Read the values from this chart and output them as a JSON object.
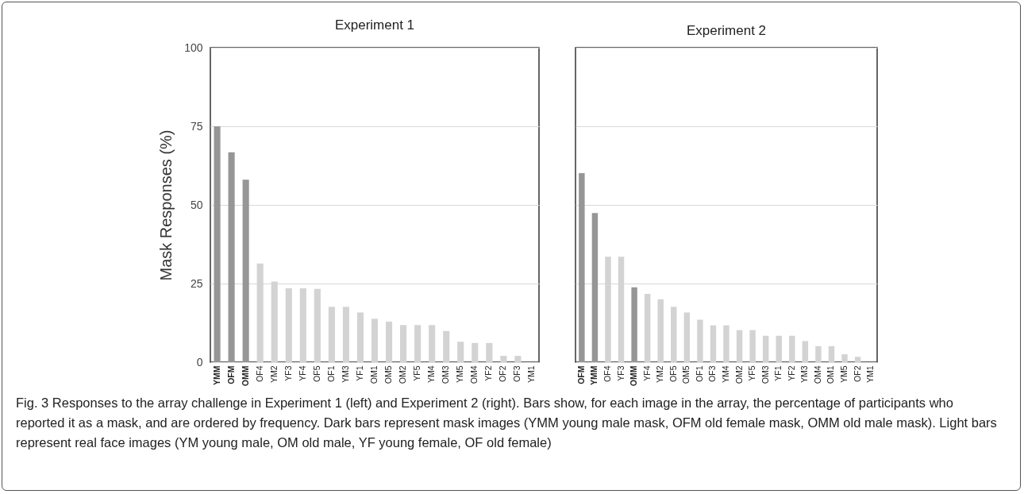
{
  "chart_data": [
    {
      "type": "bar",
      "title": "Experiment 1",
      "ylabel": "Mask Responses (%)",
      "categories": [
        "YMM",
        "OFM",
        "OMM",
        "OF4",
        "YM2",
        "YF3",
        "YF4",
        "OF5",
        "OF1",
        "YM3",
        "YF1",
        "OM1",
        "OM5",
        "OM2",
        "YF5",
        "YM4",
        "OM3",
        "YM5",
        "OM4",
        "YF2",
        "OF2",
        "OF3",
        "YM1"
      ],
      "values": [
        75,
        66.7,
        58,
        31.4,
        25.6,
        23.5,
        23.5,
        23.3,
        17.6,
        17.6,
        15.8,
        13.8,
        12.9,
        11.8,
        11.8,
        11.8,
        9.9,
        6.5,
        6.1,
        6.1,
        2,
        2,
        0
      ],
      "colors": [
        "#969696",
        "#969696",
        "#969696",
        "#d3d3d3",
        "#d3d3d3",
        "#d3d3d3",
        "#d3d3d3",
        "#d3d3d3",
        "#d3d3d3",
        "#d3d3d3",
        "#d3d3d3",
        "#d3d3d3",
        "#d3d3d3",
        "#d3d3d3",
        "#d3d3d3",
        "#d3d3d3",
        "#d3d3d3",
        "#d3d3d3",
        "#d3d3d3",
        "#d3d3d3",
        "#d3d3d3",
        "#d3d3d3",
        "#d3d3d3"
      ],
      "ylim": [
        0,
        100
      ],
      "yticks": [
        0,
        25,
        50,
        75,
        100
      ],
      "grid": "y",
      "annotations": [
        "Fig. 3 Responses to the array challenge in Experiment 1 (left) and Experiment 2 (right). Bars show, for each image in the array, the percentage of participants who reported it as a mask, and are ordered by frequency. Dark bars represent mask images (YMM young male mask, OFM old female mask, OMM old male mask). Light bars represent real face images (YM young male, OM old male, YF young female, OF old female)"
      ]
    },
    {
      "type": "bar",
      "title": "Experiment 2",
      "categories": [
        "OFM",
        "YMM",
        "OF4",
        "YF3",
        "OMM",
        "YF4",
        "YM2",
        "OF5",
        "OM5",
        "OF1",
        "OF3",
        "YM4",
        "OM2",
        "YF5",
        "OM3",
        "YF1",
        "YF2",
        "YM3",
        "OM4",
        "OM1",
        "YM5",
        "OF2",
        "YM1"
      ],
      "values": [
        60.1,
        47.4,
        33.5,
        33.5,
        23.8,
        21.7,
        20,
        17.6,
        15.8,
        13.5,
        11.7,
        11.7,
        10.2,
        10.2,
        8.4,
        8.4,
        8.4,
        6.7,
        5.1,
        5.1,
        2.5,
        1.7,
        0
      ],
      "colors": [
        "#969696",
        "#969696",
        "#d3d3d3",
        "#d3d3d3",
        "#969696",
        "#d3d3d3",
        "#d3d3d3",
        "#d3d3d3",
        "#d3d3d3",
        "#d3d3d3",
        "#d3d3d3",
        "#d3d3d3",
        "#d3d3d3",
        "#d3d3d3",
        "#d3d3d3",
        "#d3d3d3",
        "#d3d3d3",
        "#d3d3d3",
        "#d3d3d3",
        "#d3d3d3",
        "#d3d3d3",
        "#d3d3d3",
        "#d3d3d3"
      ],
      "ylim": [
        0,
        100
      ],
      "yticks": [
        0,
        25,
        50,
        75,
        100
      ],
      "grid": "y",
      "tick_labels": "x"
    }
  ]
}
